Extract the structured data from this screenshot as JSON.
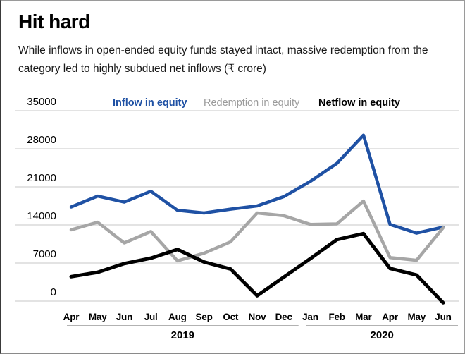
{
  "card": {
    "title": "Hit hard",
    "subtitle": "While inflows in open-ended equity funds stayed intact, massive redemption from the category led to highly subdued net inflows (₹ crore)"
  },
  "legend": {
    "inflow": "Inflow in equity",
    "redemption": "Redemption in equity",
    "netflow": "Netflow in equity"
  },
  "colors": {
    "inflow": "#1f51a4",
    "redemption": "#a6a6a6",
    "netflow": "#000000",
    "legend_redemption_text": "#9b9b9b",
    "gridline": "#d2d2d2",
    "axis_underline": "#999999"
  },
  "chart_data": {
    "type": "line",
    "title": "Hit hard",
    "unit": "₹ crore",
    "categories": [
      "Apr",
      "May",
      "Jun",
      "Jul",
      "Aug",
      "Sep",
      "Oct",
      "Nov",
      "Dec",
      "Jan",
      "Feb",
      "Mar",
      "Apr",
      "May",
      "Jun"
    ],
    "year_groups": [
      {
        "label": "2019",
        "start": 0,
        "count": 9
      },
      {
        "label": "2020",
        "start": 9,
        "count": 6
      }
    ],
    "y_ticks": [
      35000,
      28000,
      21000,
      14000,
      7000,
      0
    ],
    "ylim": [
      -1500,
      35000
    ],
    "grid": true,
    "legend_position": "top",
    "series": [
      {
        "name": "Inflow in equity",
        "color": "#1f51a4",
        "values": [
          17300,
          19300,
          18200,
          20200,
          16700,
          16200,
          16900,
          17500,
          19200,
          22000,
          25300,
          30500,
          14100,
          12500,
          13600
        ]
      },
      {
        "name": "Redemption in equity",
        "color": "#a6a6a6",
        "values": [
          13100,
          14500,
          10700,
          12800,
          7400,
          8800,
          10900,
          16200,
          15700,
          14100,
          14200,
          18400,
          8000,
          7500,
          13500
        ]
      },
      {
        "name": "Netflow in equity",
        "color": "#000000",
        "values": [
          4500,
          5300,
          6900,
          7900,
          9500,
          7200,
          5900,
          1000,
          4400,
          7800,
          11300,
          12400,
          6000,
          4800,
          -300
        ]
      }
    ]
  }
}
